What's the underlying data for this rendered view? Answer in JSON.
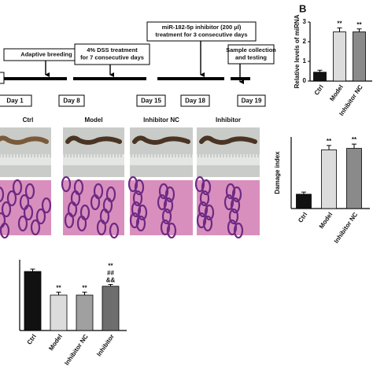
{
  "panel_letter": "B",
  "timeline": {
    "events": [
      {
        "lines": [
          "Adaptive breeding"
        ]
      },
      {
        "lines": [
          "4% DSS treatment",
          "for 7 consecutive days"
        ]
      },
      {
        "lines": [
          "miR-182-5p inhibitor (200 μl)",
          "treatment  for 3 consecutive days"
        ]
      },
      {
        "lines": [
          "Sample collection",
          "and testing"
        ]
      }
    ],
    "days": [
      "Day 1",
      "Day 8",
      "Day 15",
      "Day 18",
      "Day 19"
    ]
  },
  "photo_labels": [
    "Ctrl",
    "Model",
    "Inhibitor NC",
    "Inhibitor"
  ],
  "chart_data": [
    {
      "type": "bar",
      "y_label": "Relative levels of miRNA",
      "categories": [
        "Ctrl",
        "Model",
        "Inhibitor NC"
      ],
      "values": [
        0.45,
        2.5,
        2.5
      ],
      "errors": [
        0.1,
        0.2,
        0.15
      ],
      "colors": [
        "#111111",
        "#dcdcdc",
        "#8a8a8a"
      ],
      "annotations": [
        [],
        [
          "**"
        ],
        [
          "**"
        ]
      ],
      "ylim": [
        0,
        3
      ],
      "yticks": [
        0,
        1,
        2,
        3
      ]
    },
    {
      "type": "bar",
      "y_label": "Damage index",
      "categories": [
        "Ctrl",
        "Model",
        "Inhibitor NC"
      ],
      "values": [
        1.0,
        4.1,
        4.2
      ],
      "errors": [
        0.15,
        0.3,
        0.3
      ],
      "colors": [
        "#111111",
        "#dcdcdc",
        "#8a8a8a"
      ],
      "annotations": [
        [],
        [
          "**"
        ],
        [
          "**"
        ]
      ],
      "ylim": [
        0,
        5
      ]
    },
    {
      "type": "bar",
      "categories": [
        "Ctrl",
        "Model",
        "Inhibitor NC",
        "Inhibitor"
      ],
      "values": [
        10,
        6,
        6,
        7.5
      ],
      "errors": [
        0.4,
        0.5,
        0.5,
        0.3
      ],
      "colors": [
        "#111111",
        "#dcdcdc",
        "#a0a0a0",
        "#6e6e6e"
      ],
      "annotations": [
        [],
        [
          "**"
        ],
        [
          "**"
        ],
        [
          "**",
          "##",
          "&&"
        ]
      ],
      "ylim": [
        0,
        12
      ]
    }
  ]
}
